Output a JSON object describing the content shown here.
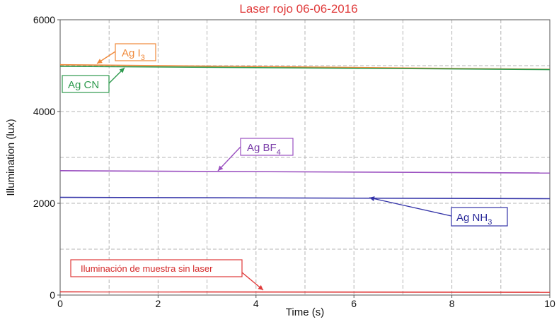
{
  "chart_data": {
    "type": "line",
    "title": "Laser rojo 06-06-2016",
    "xlabel": "Time (s)",
    "ylabel": "Illumination (lux)",
    "xlim": [
      0,
      10
    ],
    "ylim": [
      0,
      6000
    ],
    "x_ticks": [
      "0",
      "2",
      "4",
      "6",
      "8",
      "10"
    ],
    "y_ticks": [
      "0",
      "2000",
      "4000",
      "6000"
    ],
    "grid": true,
    "series": [
      {
        "label_main": "Ag I",
        "label_sub": "3",
        "color": "#f0893a",
        "x": [
          0,
          10
        ],
        "y": [
          5020,
          4920
        ],
        "label_color": "#f0893a"
      },
      {
        "label_main": "Ag CN",
        "label_sub": "",
        "color": "#2e9a4e",
        "x": [
          0,
          10
        ],
        "y": [
          4985,
          4915
        ],
        "label_color": "#2e9a4e"
      },
      {
        "label_main": "Ag BF",
        "label_sub": "4",
        "color": "#9a4fc0",
        "x": [
          0,
          10
        ],
        "y": [
          2710,
          2660
        ],
        "label_color": "#7a3da8"
      },
      {
        "label_main": "Ag NH",
        "label_sub": "3",
        "color": "#3434a8",
        "x": [
          0,
          10
        ],
        "y": [
          2130,
          2100
        ],
        "label_color": "#2a2a9a"
      },
      {
        "label_main": "Iluminación de muestra sin laser",
        "label_sub": "",
        "color": "#e03a3a",
        "x": [
          0,
          10
        ],
        "y": [
          70,
          60
        ],
        "label_color": "#d42a2a"
      }
    ]
  }
}
